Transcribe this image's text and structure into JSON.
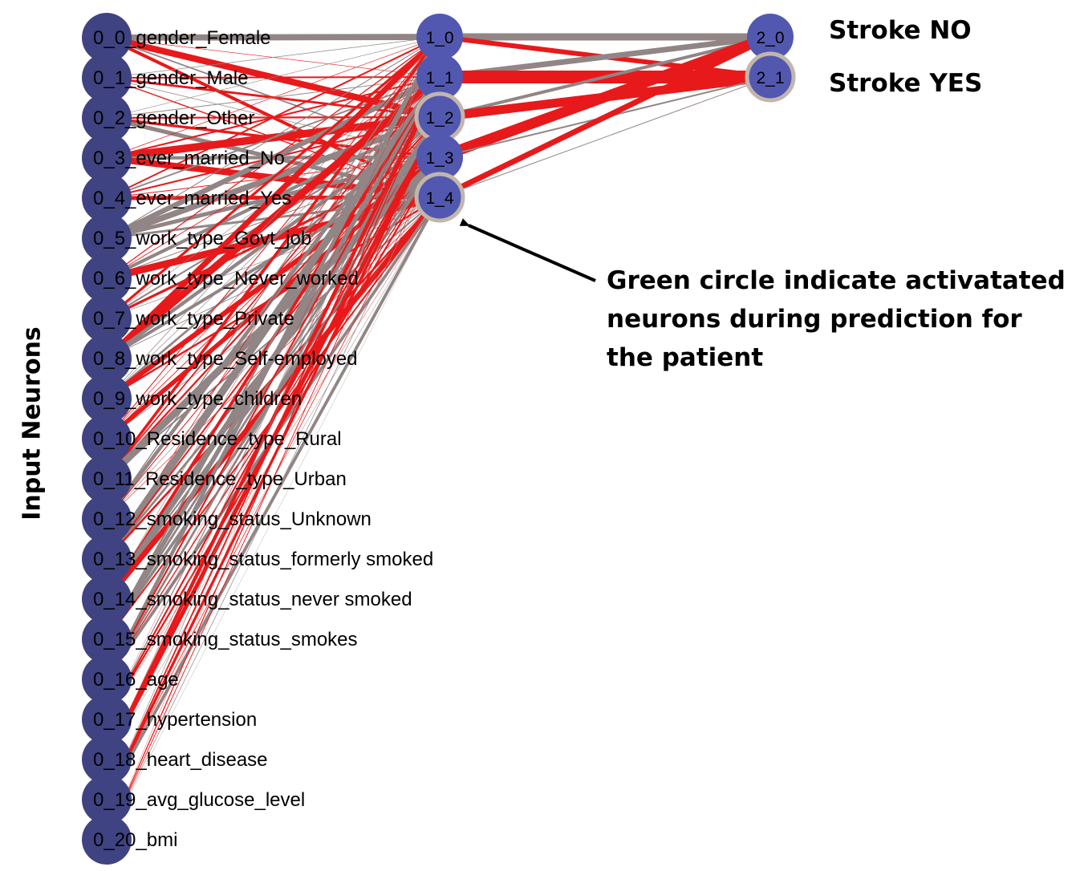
{
  "axis_title": "Input Neurons",
  "annotation": "Green circle indicate activatated neurons during prediction for the patient",
  "colors": {
    "node_fill": "#3f4381",
    "node_fill_light": "#5258b0",
    "node_ring": "#c2b6ac",
    "edge_gray": "#918585",
    "edge_red": "#e8191a",
    "arrow": "#000000"
  },
  "layers": {
    "input": [
      "0_0_gender_Female",
      "0_1_gender_Male",
      "0_2_gender_Other",
      "0_3_ever_married_No",
      "0_4_ever_married_Yes",
      "0_5_work_type_Govt_job",
      "0_6_work_type_Never_worked",
      "0_7_work_type_Private",
      "0_8_work_type_Self-employed",
      "0_9_work_type_children",
      "0_10_Residence_type_Rural",
      "0_11_Residence_type_Urban",
      "0_12_smoking_status_Unknown",
      "0_13_smoking_status_formerly smoked",
      "0_14_smoking_status_never smoked",
      "0_15_smoking_status_smokes",
      "0_16_age",
      "0_17_hypertension",
      "0_18_heart_disease",
      "0_19_avg_glucose_level",
      "0_20_bmi"
    ],
    "hidden": [
      {
        "id": "1_0",
        "activated": false
      },
      {
        "id": "1_1",
        "activated": false
      },
      {
        "id": "1_2",
        "activated": true
      },
      {
        "id": "1_3",
        "activated": false
      },
      {
        "id": "1_4",
        "activated": true
      }
    ],
    "output": [
      {
        "id": "2_0",
        "label": "Stroke NO",
        "activated": false
      },
      {
        "id": "2_1",
        "label": "Stroke YES",
        "activated": true
      }
    ]
  }
}
